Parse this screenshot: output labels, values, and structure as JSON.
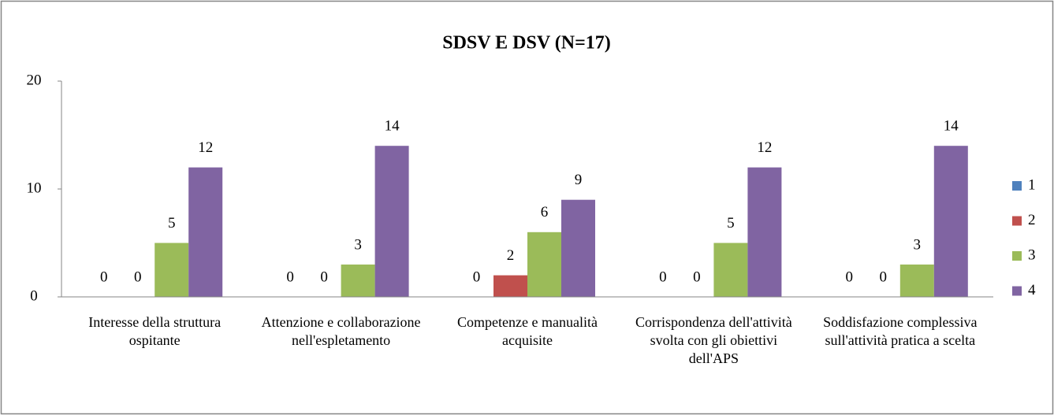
{
  "chart_data": {
    "type": "bar",
    "title": "SDSV E DSV (N=17)",
    "categories": [
      "Interesse della struttura ospitante",
      "Attenzione e collaborazione nell'espletamento",
      "Competenze e manualità acquisite",
      "Corrispondenza dell'attività svolta con gli obiettivi dell'APS",
      "Soddisfazione complessiva sull'attività pratica a scelta"
    ],
    "series": [
      {
        "name": "1",
        "color": "#4f81bd",
        "values": [
          0,
          0,
          0,
          0,
          0
        ]
      },
      {
        "name": "2",
        "color": "#c0504d",
        "values": [
          0,
          0,
          2,
          0,
          0
        ]
      },
      {
        "name": "3",
        "color": "#9bbb59",
        "values": [
          5,
          3,
          6,
          5,
          3
        ]
      },
      {
        "name": "4",
        "color": "#8064a2",
        "values": [
          12,
          14,
          9,
          12,
          14
        ]
      }
    ],
    "ylim": [
      0,
      20
    ],
    "yticks": [
      0,
      10,
      20
    ],
    "grid": false,
    "legend": "right"
  }
}
